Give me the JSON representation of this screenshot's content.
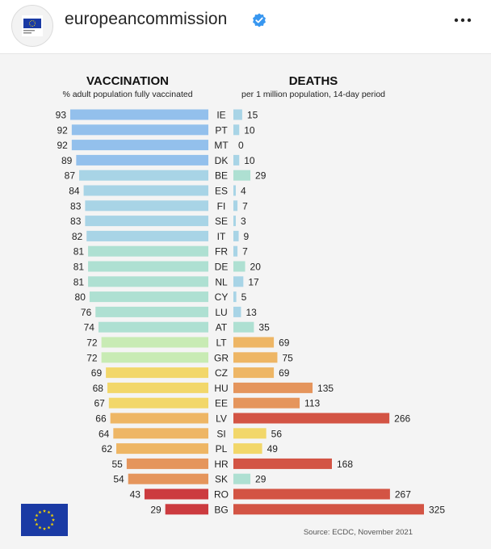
{
  "header": {
    "account_name": "europeancommission",
    "verified_icon": "verified-badge-icon",
    "more_icon": "more-options-icon",
    "avatar_icon": "eu-commission-logo-icon"
  },
  "chart_data": {
    "type": "bar",
    "left_panel": {
      "title": "VACCINATION",
      "subtitle": "% adult population fully vaccinated"
    },
    "right_panel": {
      "title": "DEATHS",
      "subtitle": "per 1 million population, 14-day period"
    },
    "categories": [
      "IE",
      "PT",
      "MT",
      "DK",
      "BE",
      "ES",
      "FI",
      "SE",
      "IT",
      "FR",
      "DE",
      "NL",
      "CY",
      "LU",
      "AT",
      "LT",
      "GR",
      "CZ",
      "HU",
      "EE",
      "LV",
      "SI",
      "PL",
      "HR",
      "SK",
      "RO",
      "BG"
    ],
    "series": [
      {
        "name": "VACCINATION",
        "values": [
          93,
          92,
          92,
          89,
          87,
          84,
          83,
          83,
          82,
          81,
          81,
          81,
          80,
          76,
          74,
          72,
          72,
          69,
          68,
          67,
          66,
          64,
          62,
          55,
          54,
          43,
          29
        ]
      },
      {
        "name": "DEATHS",
        "values": [
          15,
          10,
          0,
          10,
          29,
          4,
          7,
          3,
          9,
          7,
          20,
          17,
          5,
          13,
          35,
          69,
          75,
          69,
          135,
          113,
          266,
          56,
          49,
          168,
          29,
          267,
          325
        ]
      }
    ],
    "source": "Source: ECDC, November 2021",
    "flag_icon": "eu-flag-icon",
    "colors": {
      "blue": "#93c0ec",
      "light_blue": "#a8d4e6",
      "teal": "#aee0d2",
      "light_green": "#c8ebb4",
      "yellow": "#f2d76a",
      "light_orange": "#eeb665",
      "orange": "#e5955c",
      "red": "#d35444",
      "dark_red": "#cc3b3f",
      "eu_blue": "#1a3aa4",
      "eu_gold": "#f5d400"
    }
  }
}
